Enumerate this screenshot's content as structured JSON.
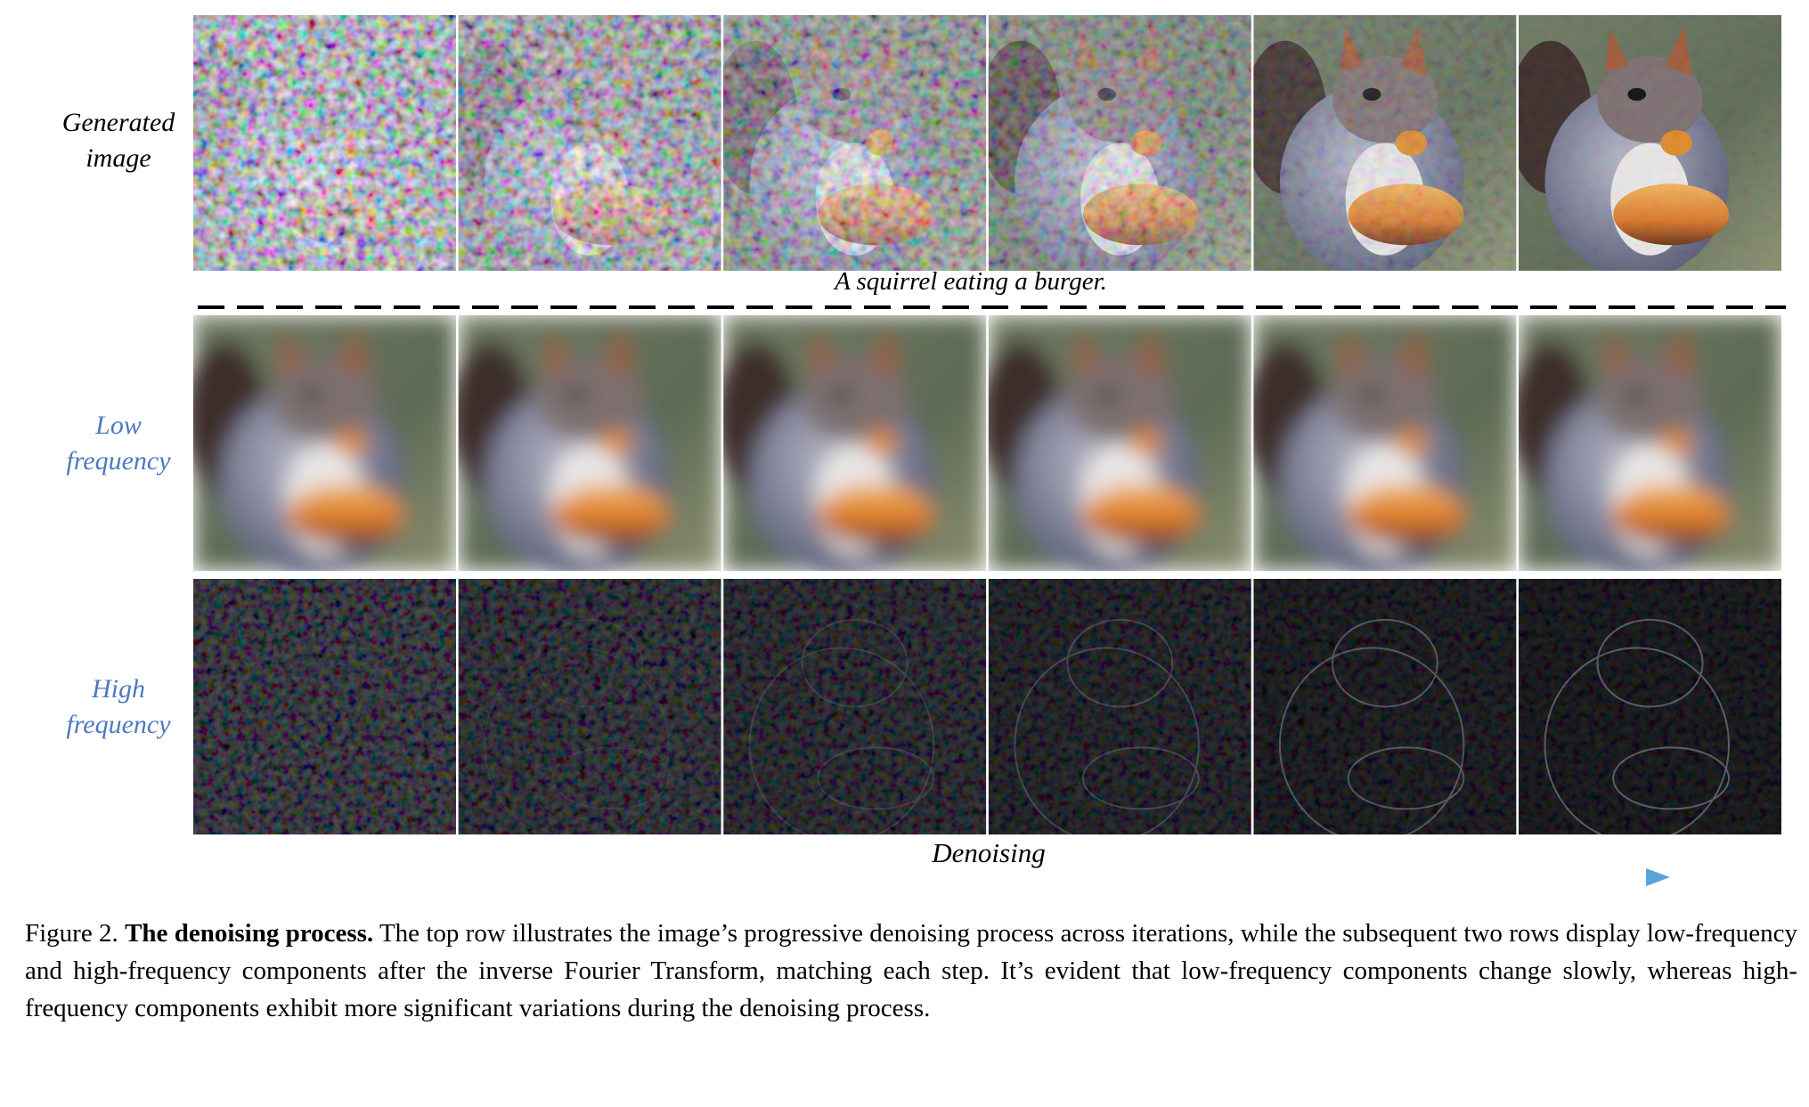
{
  "figure": {
    "row_labels": [
      "Generated image",
      "Low frequency",
      "High frequency"
    ],
    "prompt": "A squirrel eating a burger.",
    "axis_label": "Denoising",
    "caption": {
      "label": "Figure 2.",
      "title": "The denoising process.",
      "text": "The top row illustrates the image’s progressive denoising process across iterations, while the subsequent two rows display low-frequency and high-frequency components after the inverse Fourier Transform, matching each step. It’s evident that low-frequency components change slowly, whereas high-frequency components exhibit more significant variations during the denoising process."
    }
  }
}
